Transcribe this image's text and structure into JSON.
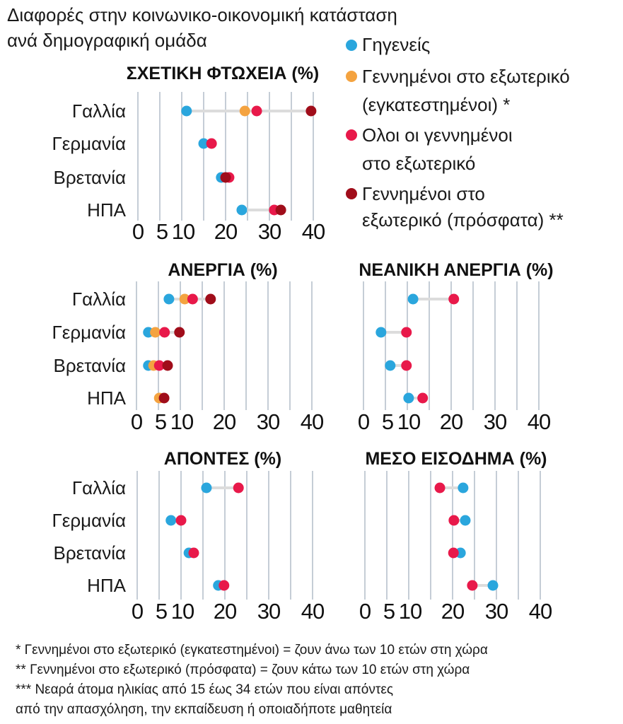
{
  "title_lines": [
    "Διαφορές στην κοινωνικο-οικονομική κατάσταση",
    "ανά δημογραφική ομάδα"
  ],
  "legend": [
    {
      "lines": [
        "Γηγενείς"
      ],
      "color": "#2aa6dd"
    },
    {
      "lines": [
        "Γεννημένοι στο εξωτερικό",
        "(εγκατεστημένοι) *"
      ],
      "color": "#f4a340"
    },
    {
      "lines": [
        "Ολοι οι γεννημένοι",
        "στο εξωτερικό"
      ],
      "color": "#e8194a"
    },
    {
      "lines": [
        "Γεννημένοι στο",
        "εξωτερικό (πρόσφατα) **"
      ],
      "color": "#a00d1a"
    }
  ],
  "footnotes": [
    "* Γεννημένοι στο εξωτερικό (εγκατεστημένοι) = ζουν άνω των 10 ετών στη χώρα",
    "** Γεννημένοι στο εξωτερικό (πρόσφατα) = ζουν κάτω των 10 ετών στη χώρα",
    "*** Νεαρά άτομα ηλικίας από 15 έως 34 ετών που είναι απόντες",
    "από την απασχόληση, την εκπαίδευση ή οποιαδήποτε μαθητεία"
  ],
  "chart_data": [
    {
      "type": "dot",
      "title": "ΣΧΕΤΙΚΗ ΦΤΩΧΕΙΑ (%)",
      "xlim": [
        0,
        40
      ],
      "ticks": [
        "0",
        "5",
        "10",
        "20",
        "30",
        "40"
      ],
      "grid": true,
      "categories": [
        "Γαλλία",
        "Γερμανία",
        "Βρετανία",
        "ΗΠΑ"
      ],
      "series": [
        {
          "name": "Γηγενείς",
          "values": [
            11.1,
            15.0,
            19.0,
            23.7
          ]
        },
        {
          "name": "Γεννημένοι στο εξωτερικό (εγκατεστημένοι) *",
          "values": [
            24.4,
            null,
            null,
            null
          ]
        },
        {
          "name": "Ολοι οι γεννημένοι στο εξωτερικό",
          "values": [
            27.1,
            16.8,
            20.8,
            31.1
          ]
        },
        {
          "name": "Γεννημένοι στο εξωτερικό (πρόσφατα) **",
          "values": [
            39.5,
            null,
            20.0,
            32.6
          ]
        }
      ]
    },
    {
      "type": "dot",
      "title": "ΑΝΕΡΓΙΑ (%)",
      "xlim": [
        0,
        40
      ],
      "ticks": [
        "0",
        "5",
        "10",
        "20",
        "30",
        "40"
      ],
      "grid": true,
      "categories": [
        "Γαλλία",
        "Γερμανία",
        "Βρετανία",
        "ΗΠΑ"
      ],
      "series": [
        {
          "name": "Γηγενείς",
          "values": [
            7.4,
            2.7,
            2.7,
            null
          ]
        },
        {
          "name": "Γεννημένοι στο εξωτερικό (εγκατεστημένοι) *",
          "values": [
            11.0,
            4.3,
            3.9,
            5.2
          ]
        },
        {
          "name": "Ολοι οι γεννημένοι στο εξωτερικό",
          "values": [
            12.8,
            6.4,
            5.2,
            null
          ]
        },
        {
          "name": "Γεννημένοι στο εξωτερικό (πρόσφατα) **",
          "values": [
            16.9,
            9.8,
            7.1,
            6.3
          ]
        }
      ]
    },
    {
      "type": "dot",
      "title": "ΝΕΑΝΙΚΗ ΑΝΕΡΓΙΑ (%)",
      "xlim": [
        0,
        40
      ],
      "ticks": [
        "0",
        "5",
        "10",
        "20",
        "30",
        "40"
      ],
      "grid": true,
      "categories": [
        "Γαλλία",
        "Γερμανία",
        "Βρετανία",
        "ΗΠΑ"
      ],
      "series": [
        {
          "name": "Γηγενείς",
          "values": [
            11.3,
            4.0,
            6.1,
            10.3
          ]
        },
        {
          "name": "Ολοι οι γεννημένοι στο εξωτερικό",
          "values": [
            20.6,
            9.8,
            9.8,
            13.5
          ]
        }
      ]
    },
    {
      "type": "dot",
      "title": "ΑΠΟΝΤΕΣ (%)",
      "xlim": [
        0,
        40
      ],
      "ticks": [
        "0",
        "5",
        "10",
        "20",
        "30",
        "40"
      ],
      "grid": true,
      "categories": [
        "Γαλλία",
        "Γερμανία",
        "Βρετανία",
        "ΗΠΑ"
      ],
      "series": [
        {
          "name": "Γηγενείς",
          "values": [
            15.8,
            7.7,
            11.8,
            18.5
          ]
        },
        {
          "name": "Ολοι οι γεννημένοι στο εξωτερικό",
          "values": [
            23.1,
            10.0,
            12.9,
            19.8
          ]
        }
      ]
    },
    {
      "type": "dot",
      "title": "ΜΕΣΟ ΕΙΣΟΔΗΜΑ (%)",
      "xlim": [
        0,
        40
      ],
      "ticks": [
        "0",
        "5",
        "10",
        "20",
        "30",
        "40"
      ],
      "grid": true,
      "categories": [
        "Γαλλία",
        "Γερμανία",
        "Βρετανία",
        "ΗΠΑ"
      ],
      "series": [
        {
          "name": "Γηγενείς",
          "values": [
            22.4,
            22.9,
            21.8,
            29.2
          ]
        },
        {
          "name": "Ολοι οι γεννημένοι στο εξωτερικό",
          "values": [
            17.1,
            20.3,
            20.2,
            24.5
          ]
        }
      ]
    }
  ]
}
